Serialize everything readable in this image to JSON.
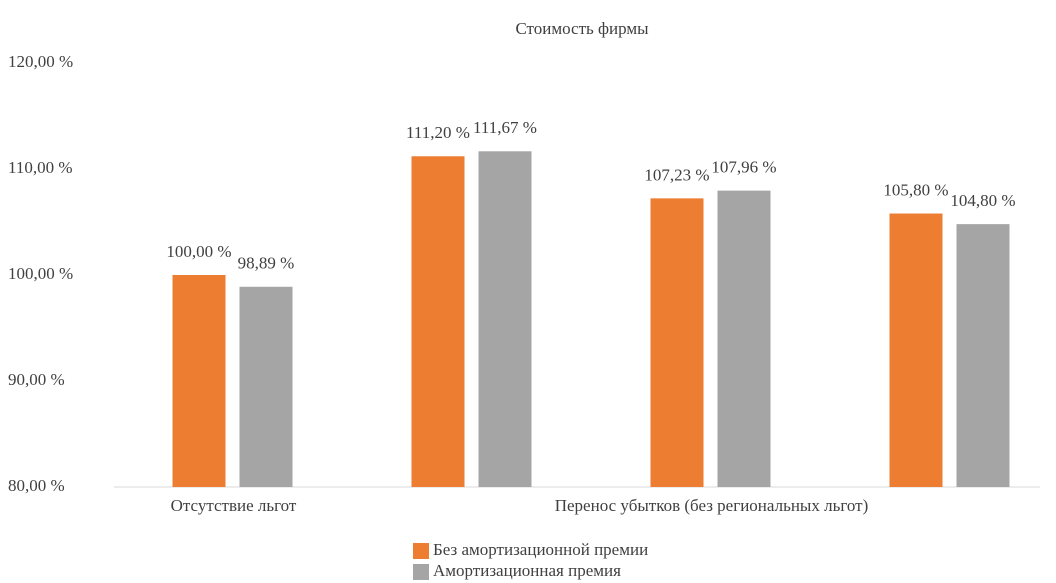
{
  "chart_data": {
    "type": "bar",
    "title": "Стоимость фирмы",
    "categories": [
      "Отсутствие льгот",
      null,
      "Перенос убытков (без региональных льгот)",
      null
    ],
    "series": [
      {
        "name": "Без амортизационной премии",
        "color": "#ed7d31",
        "values": [
          100.0,
          111.2,
          107.23,
          105.8
        ],
        "value_labels": [
          "100,00 %",
          "111,20 %",
          "107,23 %",
          "105,80 %"
        ]
      },
      {
        "name": "Амортизационная премия",
        "color": "#a5a5a5",
        "values": [
          98.89,
          111.67,
          107.96,
          104.8
        ],
        "value_labels": [
          "98,89 %",
          "111,67 %",
          "107,96 %",
          "104,80 %"
        ]
      }
    ],
    "ylim": [
      80,
      120
    ],
    "yticks": [
      {
        "value": 80,
        "label": "80,00 %"
      },
      {
        "value": 90,
        "label": "90,00 %"
      },
      {
        "value": 100,
        "label": "100,00 %"
      },
      {
        "value": 110,
        "label": "110,00 %"
      },
      {
        "value": 120,
        "label": "120,00 %"
      }
    ],
    "grid": false,
    "legend": "bottom"
  }
}
